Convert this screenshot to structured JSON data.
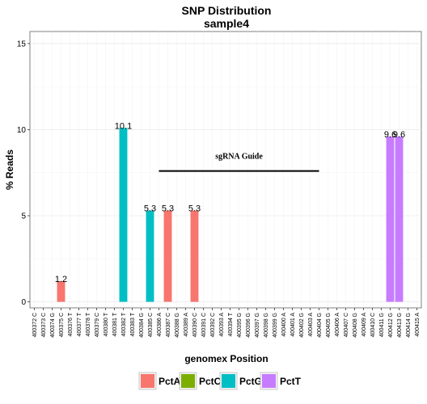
{
  "chart_data": {
    "type": "bar",
    "title": "SNP Distribution",
    "subtitle": "sample4",
    "xlabel": "genomex Position",
    "ylabel": "% Reads",
    "ylim": [
      -0.35,
      15.7
    ],
    "yticks": [
      0,
      5,
      10,
      15
    ],
    "grid": true,
    "legend_position": "bottom",
    "categories": [
      "400372 C",
      "400373 C",
      "400374 G",
      "400375 C",
      "400376 T",
      "400377 T",
      "400378 T",
      "400379 C",
      "400380 T",
      "400381 T",
      "400382 T",
      "400383 T",
      "400384 G",
      "400385 C",
      "400386 A",
      "400387 C",
      "400388 G",
      "400389 A",
      "400390 C",
      "400391 C",
      "400392 C",
      "400393 A",
      "400394 T",
      "400395 G",
      "400396 G",
      "400397 G",
      "400398 G",
      "400399 G",
      "400400 A",
      "400401 A",
      "400402 G",
      "400403 A",
      "400404 G",
      "400405 G",
      "400406 A",
      "400407 C",
      "400408 G",
      "400409 A",
      "400410 C",
      "400411 G",
      "400412 G",
      "400413 G",
      "400414 G",
      "400415 A"
    ],
    "series": [
      {
        "name": "PctA",
        "color": "#F8766D",
        "points": [
          {
            "x": "400375 C",
            "value": 1.2
          },
          {
            "x": "400387 C",
            "value": 5.3
          },
          {
            "x": "400390 C",
            "value": 5.3
          }
        ]
      },
      {
        "name": "PctC",
        "color": "#7CAE00",
        "points": []
      },
      {
        "name": "PctG",
        "color": "#00BFC4",
        "points": [
          {
            "x": "400382 T",
            "value": 10.1
          },
          {
            "x": "400385 C",
            "value": 5.3
          }
        ]
      },
      {
        "name": "PctT",
        "color": "#C77CFF",
        "points": [
          {
            "x": "400412 G",
            "value": 9.6
          },
          {
            "x": "400413 G",
            "value": 9.6
          }
        ]
      }
    ],
    "annotations": [
      {
        "type": "segment",
        "x_start": "400386 A",
        "x_end": "400404 G",
        "y": 7.6
      },
      {
        "type": "text",
        "text": "sgRNA Guide",
        "x": "400395 G",
        "y": 8.3
      }
    ]
  }
}
